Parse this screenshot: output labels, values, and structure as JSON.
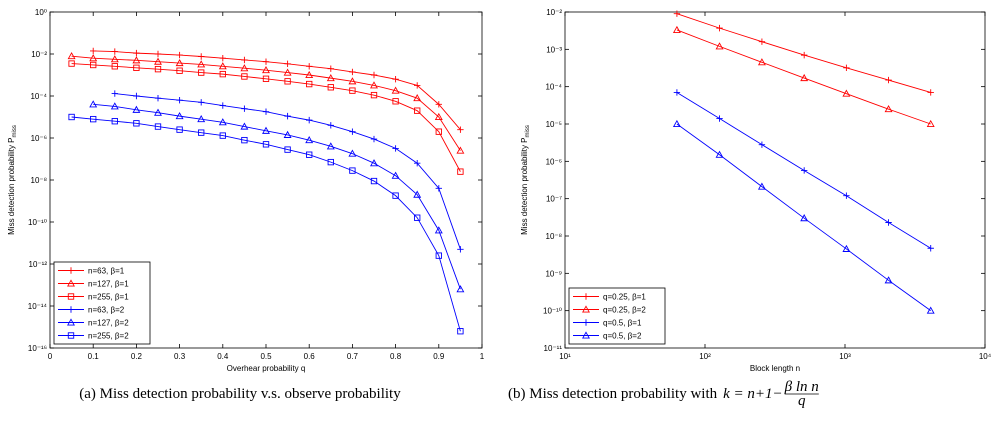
{
  "chart_data": [
    {
      "type": "line",
      "caption": "(a) Miss detection probability v.s. observe probability",
      "xlabel": "Overhear probability q",
      "ylabel": "Miss detection probability P",
      "ylabel_sub": "miss",
      "xlim": [
        0,
        1
      ],
      "xticks": [
        0,
        0.1,
        0.2,
        0.3,
        0.4,
        0.5,
        0.6,
        0.7,
        0.8,
        0.9,
        1
      ],
      "ylim": [
        1e-16,
        1
      ],
      "ylog": true,
      "yticks": [
        {
          "value": 1,
          "label": "10⁰"
        },
        {
          "value": 0.01,
          "label": "10⁻²"
        },
        {
          "value": 0.0001,
          "label": "10⁻⁴"
        },
        {
          "value": 1e-06,
          "label": "10⁻⁶"
        },
        {
          "value": 1e-08,
          "label": "10⁻⁸"
        },
        {
          "value": 1e-10,
          "label": "10⁻¹⁰"
        },
        {
          "value": 1e-12,
          "label": "10⁻¹²"
        },
        {
          "value": 1e-14,
          "label": "10⁻¹⁴"
        },
        {
          "value": 1e-16,
          "label": "10⁻¹⁶"
        }
      ],
      "legend": "lower left",
      "series": [
        {
          "name": "n=63, β=1",
          "color": "#ff0000",
          "marker": "plus",
          "x": [
            0.1,
            0.15,
            0.2,
            0.25,
            0.3,
            0.35,
            0.4,
            0.45,
            0.5,
            0.55,
            0.6,
            0.65,
            0.7,
            0.75,
            0.8,
            0.85,
            0.9,
            0.95
          ],
          "values": [
            0.014,
            0.013,
            0.011,
            0.01,
            0.0089,
            0.0076,
            0.0063,
            0.0052,
            0.0043,
            0.0034,
            0.0026,
            0.002,
            0.0014,
            0.001,
            0.00063,
            0.00032,
            4e-05,
            2.5e-06
          ]
        },
        {
          "name": "n=127, β=1",
          "color": "#ff0000",
          "marker": "triangle",
          "x": [
            0.05,
            0.1,
            0.15,
            0.2,
            0.25,
            0.3,
            0.35,
            0.4,
            0.45,
            0.5,
            0.55,
            0.6,
            0.65,
            0.7,
            0.75,
            0.8,
            0.85,
            0.9,
            0.95
          ],
          "values": [
            0.0079,
            0.0063,
            0.0056,
            0.005,
            0.0043,
            0.0037,
            0.0032,
            0.0026,
            0.0021,
            0.0017,
            0.0013,
            0.001,
            0.00071,
            0.0005,
            0.00032,
            0.00018,
            7.9e-05,
            1e-05,
            2.5e-07
          ]
        },
        {
          "name": "n=255, β=1",
          "color": "#ff0000",
          "marker": "square",
          "x": [
            0.05,
            0.1,
            0.15,
            0.2,
            0.25,
            0.3,
            0.35,
            0.4,
            0.45,
            0.5,
            0.55,
            0.6,
            0.65,
            0.7,
            0.75,
            0.8,
            0.85,
            0.9,
            0.95
          ],
          "values": [
            0.0035,
            0.003,
            0.0026,
            0.0022,
            0.0019,
            0.0016,
            0.0013,
            0.0011,
            0.00085,
            0.00066,
            0.0005,
            0.00037,
            0.00026,
            0.00018,
            0.00011,
            5.6e-05,
            2e-05,
            2e-06,
            2.5e-08
          ]
        },
        {
          "name": "n=63, β=2",
          "color": "#0000ff",
          "marker": "plus",
          "x": [
            0.15,
            0.2,
            0.25,
            0.3,
            0.35,
            0.4,
            0.45,
            0.5,
            0.55,
            0.6,
            0.65,
            0.7,
            0.75,
            0.8,
            0.85,
            0.9,
            0.95
          ],
          "values": [
            0.00013,
            0.0001,
            7.9e-05,
            6.3e-05,
            5e-05,
            3.5e-05,
            2.5e-05,
            1.8e-05,
            1.1e-05,
            7.1e-06,
            4e-06,
            2e-06,
            8.9e-07,
            3.2e-07,
            6.3e-08,
            4e-09,
            5e-12
          ]
        },
        {
          "name": "n=127, β=2",
          "color": "#0000ff",
          "marker": "triangle",
          "x": [
            0.1,
            0.15,
            0.2,
            0.25,
            0.3,
            0.35,
            0.4,
            0.45,
            0.5,
            0.55,
            0.6,
            0.65,
            0.7,
            0.75,
            0.8,
            0.85,
            0.9,
            0.95
          ],
          "values": [
            4e-05,
            3.2e-05,
            2.2e-05,
            1.6e-05,
            1.1e-05,
            7.9e-06,
            5.6e-06,
            3.5e-06,
            2.2e-06,
            1.4e-06,
            7.9e-07,
            4e-07,
            1.8e-07,
            6.3e-08,
            1.6e-08,
            2e-09,
            4e-11,
            6.3e-14
          ]
        },
        {
          "name": "n=255, β=2",
          "color": "#0000ff",
          "marker": "square",
          "x": [
            0.05,
            0.1,
            0.15,
            0.2,
            0.25,
            0.3,
            0.35,
            0.4,
            0.45,
            0.5,
            0.55,
            0.6,
            0.65,
            0.7,
            0.75,
            0.8,
            0.85,
            0.9,
            0.95
          ],
          "values": [
            1e-05,
            7.9e-06,
            6.3e-06,
            5e-06,
            3.5e-06,
            2.5e-06,
            1.8e-06,
            1.3e-06,
            7.9e-07,
            5e-07,
            2.8e-07,
            1.6e-07,
            7.1e-08,
            2.8e-08,
            8.9e-09,
            1.8e-09,
            1.6e-10,
            2.5e-12,
            6.3e-16
          ]
        }
      ]
    },
    {
      "type": "line",
      "caption": "(b) Miss detection probability with",
      "formula": "k = n+1−",
      "formula_num": "β ln n",
      "formula_den": "q",
      "xlabel": "Block length n",
      "ylabel": "Miss detection probability P",
      "ylabel_sub": "miss",
      "xlim": [
        10,
        10000
      ],
      "xlog": true,
      "xticks": [
        {
          "value": 10,
          "label": "10¹"
        },
        {
          "value": 100,
          "label": "10²"
        },
        {
          "value": 1000,
          "label": "10³"
        },
        {
          "value": 10000,
          "label": "10⁴"
        }
      ],
      "ylim": [
        1e-11,
        0.01
      ],
      "ylog": true,
      "yticks": [
        {
          "value": 1e-11,
          "label": "10⁻¹¹"
        },
        {
          "value": 1e-10,
          "label": "10⁻¹⁰"
        },
        {
          "value": 1e-09,
          "label": "10⁻⁹"
        },
        {
          "value": 1e-08,
          "label": "10⁻⁸"
        },
        {
          "value": 1e-07,
          "label": "10⁻⁷"
        },
        {
          "value": 1e-06,
          "label": "10⁻⁶"
        },
        {
          "value": 1e-05,
          "label": "10⁻⁵"
        },
        {
          "value": 0.0001,
          "label": "10⁻⁴"
        },
        {
          "value": 0.001,
          "label": "10⁻³"
        },
        {
          "value": 0.01,
          "label": "10⁻²"
        }
      ],
      "legend": "lower left",
      "x": [
        63,
        127,
        255,
        511,
        1023,
        2047,
        4095
      ],
      "series": [
        {
          "name": "q=0.25, β=1",
          "color": "#ff0000",
          "marker": "plus",
          "values": [
            0.009,
            0.0037,
            0.0016,
            0.0007,
            0.00032,
            0.00015,
            7e-05
          ]
        },
        {
          "name": "q=0.25, β=2",
          "color": "#ff0000",
          "marker": "triangle",
          "values": [
            0.0033,
            0.0012,
            0.00045,
            0.00017,
            6.5e-05,
            2.5e-05,
            1e-05
          ]
        },
        {
          "name": "q=0.5, β=1",
          "color": "#0000ff",
          "marker": "plus",
          "values": [
            7e-05,
            1.4e-05,
            2.8e-06,
            5.7e-07,
            1.2e-07,
            2.3e-08,
            4.7e-09
          ]
        },
        {
          "name": "q=0.5, β=2",
          "color": "#0000ff",
          "marker": "triangle",
          "values": [
            1e-05,
            1.5e-06,
            2.1e-07,
            3e-08,
            4.5e-09,
            6.5e-10,
            1e-10
          ]
        }
      ]
    }
  ]
}
